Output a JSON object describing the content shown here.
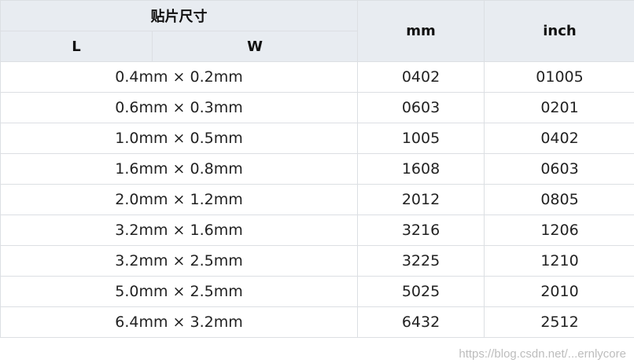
{
  "header": {
    "group": "贴片尺寸",
    "l": "L",
    "w": "W",
    "mm": "mm",
    "inch": "inch"
  },
  "rows": [
    {
      "size": "0.4mm × 0.2mm",
      "mm": "0402",
      "inch": "01005"
    },
    {
      "size": "0.6mm × 0.3mm",
      "mm": "0603",
      "inch": "0201"
    },
    {
      "size": "1.0mm × 0.5mm",
      "mm": "1005",
      "inch": "0402"
    },
    {
      "size": "1.6mm × 0.8mm",
      "mm": "1608",
      "inch": "0603"
    },
    {
      "size": "2.0mm × 1.2mm",
      "mm": "2012",
      "inch": "0805"
    },
    {
      "size": "3.2mm × 1.6mm",
      "mm": "3216",
      "inch": "1206"
    },
    {
      "size": "3.2mm × 2.5mm",
      "mm": "3225",
      "inch": "1210"
    },
    {
      "size": "5.0mm × 2.5mm",
      "mm": "5025",
      "inch": "2010"
    },
    {
      "size": "6.4mm × 3.2mm",
      "mm": "6432",
      "inch": "2512"
    }
  ],
  "watermark": "https://blog.csdn.net/...ernlycore"
}
